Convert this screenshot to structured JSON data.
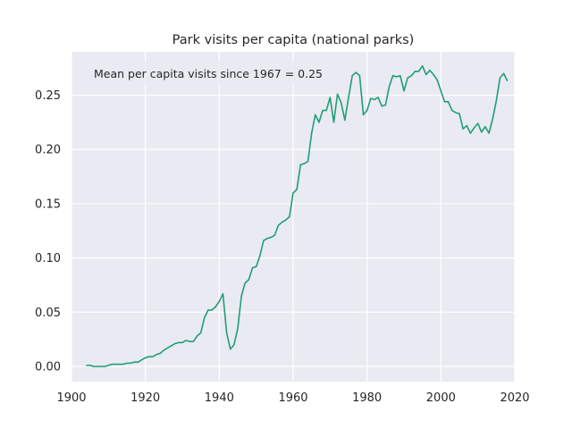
{
  "chart_data": {
    "type": "line",
    "title": "Park visits per capita (national parks)",
    "xlabel": "",
    "ylabel": "",
    "xlim": [
      1900,
      2020
    ],
    "ylim": [
      -0.014,
      0.29
    ],
    "grid": true,
    "legend": "none",
    "x_ticks": [
      1900,
      1920,
      1940,
      1960,
      1980,
      2000,
      2020
    ],
    "y_ticks": [
      0.0,
      0.05,
      0.1,
      0.15,
      0.2,
      0.25
    ],
    "y_tick_labels": [
      "0.00",
      "0.05",
      "0.10",
      "0.15",
      "0.20",
      "0.25"
    ],
    "annotation": "Mean per capita visits since 1967 = 0.25",
    "colors": {
      "line": "#1f9e77",
      "background": "#eaeaf2",
      "grid": "#ffffff"
    },
    "series": [
      {
        "x": [
          1904,
          1905,
          1906,
          1907,
          1908,
          1909,
          1910,
          1911,
          1912,
          1913,
          1914,
          1915,
          1916,
          1917,
          1918,
          1919,
          1920,
          1921,
          1922,
          1923,
          1924,
          1925,
          1926,
          1927,
          1928,
          1929,
          1930,
          1931,
          1932,
          1933,
          1934,
          1935,
          1936,
          1937,
          1938,
          1939,
          1940,
          1941,
          1942,
          1943,
          1944,
          1945,
          1946,
          1947,
          1948,
          1949,
          1950,
          1951,
          1952,
          1953,
          1954,
          1955,
          1956,
          1957,
          1958,
          1959,
          1960,
          1961,
          1962,
          1963,
          1964,
          1965,
          1966,
          1967,
          1968,
          1969,
          1970,
          1971,
          1972,
          1973,
          1974,
          1975,
          1976,
          1977,
          1978,
          1979,
          1980,
          1981,
          1982,
          1983,
          1984,
          1985,
          1986,
          1987,
          1988,
          1989,
          1990,
          1991,
          1992,
          1993,
          1994,
          1995,
          1996,
          1997,
          1998,
          1999,
          2000,
          2001,
          2002,
          2003,
          2004,
          2005,
          2006,
          2007,
          2008,
          2009,
          2010,
          2011,
          2012,
          2013,
          2014,
          2015,
          2016,
          2017,
          2018
        ],
        "values": [
          0.001,
          0.001,
          0.0,
          0.0,
          0.0,
          0.0,
          0.001,
          0.002,
          0.002,
          0.002,
          0.002,
          0.003,
          0.003,
          0.004,
          0.004,
          0.006,
          0.008,
          0.009,
          0.009,
          0.011,
          0.012,
          0.015,
          0.017,
          0.019,
          0.021,
          0.022,
          0.022,
          0.024,
          0.023,
          0.023,
          0.028,
          0.031,
          0.045,
          0.052,
          0.052,
          0.055,
          0.06,
          0.067,
          0.031,
          0.016,
          0.02,
          0.035,
          0.065,
          0.077,
          0.08,
          0.091,
          0.092,
          0.102,
          0.116,
          0.118,
          0.119,
          0.121,
          0.13,
          0.133,
          0.135,
          0.138,
          0.16,
          0.163,
          0.186,
          0.187,
          0.189,
          0.215,
          0.232,
          0.225,
          0.236,
          0.236,
          0.248,
          0.225,
          0.251,
          0.243,
          0.227,
          0.248,
          0.268,
          0.271,
          0.268,
          0.232,
          0.236,
          0.247,
          0.246,
          0.248,
          0.24,
          0.241,
          0.258,
          0.268,
          0.267,
          0.268,
          0.254,
          0.266,
          0.268,
          0.272,
          0.272,
          0.277,
          0.269,
          0.273,
          0.269,
          0.264,
          0.254,
          0.244,
          0.244,
          0.236,
          0.234,
          0.233,
          0.219,
          0.222,
          0.215,
          0.22,
          0.224,
          0.216,
          0.221,
          0.215,
          0.228,
          0.245,
          0.266,
          0.27,
          0.263
        ]
      }
    ]
  }
}
